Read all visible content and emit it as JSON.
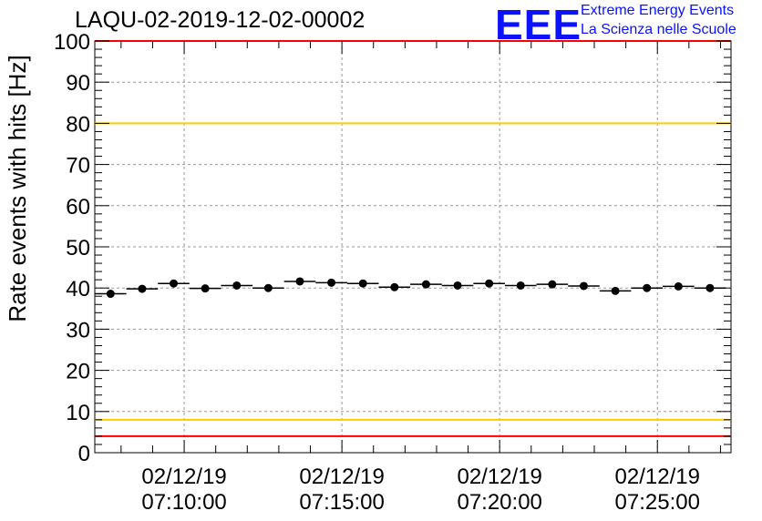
{
  "header": {
    "title": "LAQU-02-2019-12-02-00002",
    "logo_mark": "EEE",
    "logo_line1": "Extreme Energy Events",
    "logo_line2": "La Scienza nelle Scuole"
  },
  "colors": {
    "logo": "#0b12ff",
    "data_points": "#000000",
    "limit_red": "#ff0000",
    "limit_yellow": "#ffcc00",
    "grid": "#9a9a9a"
  },
  "chart_data": {
    "type": "scatter",
    "title": "LAQU-02-2019-12-02-00002",
    "ylabel": "Rate events with hits [Hz]",
    "xlabel": "",
    "ylim": [
      0,
      100
    ],
    "y_ticks": [
      0,
      10,
      20,
      30,
      40,
      50,
      60,
      70,
      80,
      90,
      100
    ],
    "xlim": [
      "02/12/19 07:07:10",
      "02/12/19 07:27:20"
    ],
    "x_ticks": [
      {
        "value": "02/12/19 07:10:00",
        "date": "02/12/19",
        "time": "07:10:00"
      },
      {
        "value": "02/12/19 07:15:00",
        "date": "02/12/19",
        "time": "07:15:00"
      },
      {
        "value": "02/12/19 07:20:00",
        "date": "02/12/19",
        "time": "07:20:00"
      },
      {
        "value": "02/12/19 07:25:00",
        "date": "02/12/19",
        "time": "07:25:00"
      }
    ],
    "grid": true,
    "series": [
      {
        "x": [
          "07:07:40",
          "07:08:40",
          "07:09:40",
          "07:10:40",
          "07:11:40",
          "07:12:40",
          "07:13:40",
          "07:14:40",
          "07:15:40",
          "07:16:40",
          "07:17:40",
          "07:18:40",
          "07:19:40",
          "07:20:40",
          "07:21:40",
          "07:22:40",
          "07:23:40",
          "07:24:40",
          "07:25:40",
          "07:26:40"
        ],
        "values": [
          38.6,
          39.8,
          41.1,
          39.9,
          40.6,
          40.0,
          41.6,
          41.3,
          41.1,
          40.2,
          40.9,
          40.6,
          41.1,
          40.6,
          40.9,
          40.5,
          39.3,
          40.0,
          40.4,
          40.0
        ]
      }
    ],
    "bin_width_seconds": 60,
    "reference_lines": [
      {
        "y": 4,
        "color": "#ff0000"
      },
      {
        "y": 8,
        "color": "#ffcc00"
      },
      {
        "y": 80,
        "color": "#ffcc00"
      },
      {
        "y": 100,
        "color": "#ff0000"
      }
    ]
  }
}
